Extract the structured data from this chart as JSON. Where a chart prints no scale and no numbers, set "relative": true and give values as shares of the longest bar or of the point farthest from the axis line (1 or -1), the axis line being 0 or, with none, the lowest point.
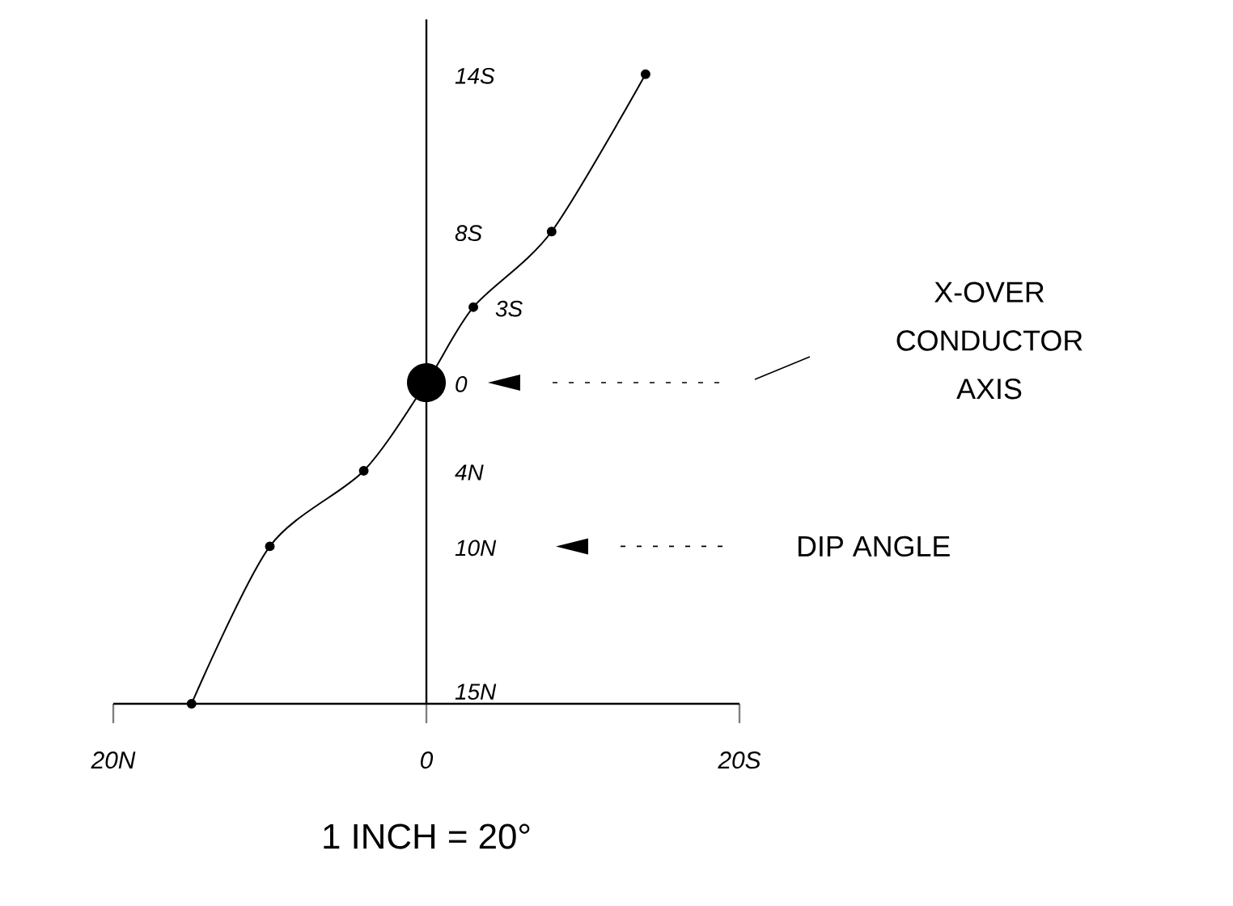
{
  "chart_data": {
    "type": "line",
    "relative": true,
    "x": [
      14,
      8,
      3,
      0,
      -4,
      -10,
      -15
    ],
    "values": [
      1,
      0.75,
      0.63,
      0.51,
      0.37,
      0.25,
      0
    ],
    "color": "#000000",
    "marker": "circle",
    "line_style": "solid",
    "xlim": [
      -20,
      20
    ],
    "xticks": [
      {
        "value": -20,
        "label": "20N"
      },
      {
        "value": 0,
        "label": "0"
      },
      {
        "value": 20,
        "label": "20S"
      }
    ],
    "annotations": [
      "14S",
      "8S",
      "3S",
      "0",
      "4N",
      "10N",
      "15N",
      "X-OVER CONDUCTOR AXIS",
      "DIP ANGLE",
      "1 INCH = 20°"
    ]
  }
}
